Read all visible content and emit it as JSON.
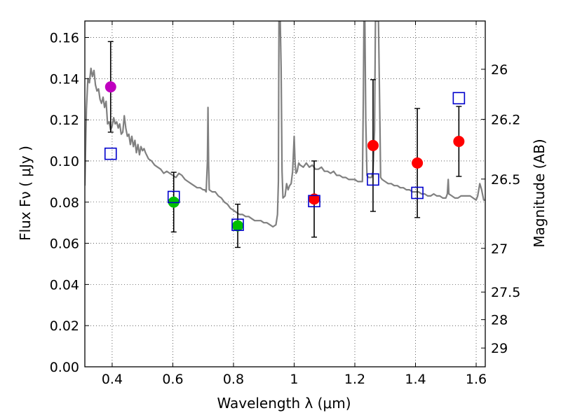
{
  "chart_data": {
    "type": "scatter",
    "title": "",
    "xlabel": "Wavelength  λ (μm)",
    "ylabel": "Flux  Fν  ( μJy )",
    "y2label": "Magnitude (AB)",
    "xlim": [
      0.31,
      1.63
    ],
    "ylim": [
      0.0,
      0.168
    ],
    "grid": true,
    "x_ticks": [
      {
        "value": 0.4,
        "label": "0.4"
      },
      {
        "value": 0.6,
        "label": "0.6"
      },
      {
        "value": 0.8,
        "label": "0.8"
      },
      {
        "value": 1.0,
        "label": "1"
      },
      {
        "value": 1.2,
        "label": "1.2"
      },
      {
        "value": 1.4,
        "label": "1.4"
      },
      {
        "value": 1.6,
        "label": "1.6"
      }
    ],
    "y_ticks": [
      {
        "value": 0.0,
        "label": "0.00"
      },
      {
        "value": 0.02,
        "label": "0.02"
      },
      {
        "value": 0.04,
        "label": "0.04"
      },
      {
        "value": 0.06,
        "label": "0.06"
      },
      {
        "value": 0.08,
        "label": "0.08"
      },
      {
        "value": 0.1,
        "label": "0.10"
      },
      {
        "value": 0.12,
        "label": "0.12"
      },
      {
        "value": 0.14,
        "label": "0.14"
      },
      {
        "value": 0.16,
        "label": "0.16"
      }
    ],
    "y2_ticks": [
      {
        "mag": 26,
        "label": "26"
      },
      {
        "mag": 26.2,
        "label": "26.2"
      },
      {
        "mag": 26.5,
        "label": "26.5"
      },
      {
        "mag": 27,
        "label": "27"
      },
      {
        "mag": 27.5,
        "label": "27.5"
      },
      {
        "mag": 28,
        "label": "28"
      },
      {
        "mag": 29,
        "label": "29"
      }
    ],
    "observed": [
      {
        "x": 0.395,
        "y": 0.136,
        "err": 0.022,
        "color": "#bf00bf"
      },
      {
        "x": 0.603,
        "y": 0.08,
        "err": 0.0145,
        "color": "#00bf00"
      },
      {
        "x": 0.814,
        "y": 0.0685,
        "err": 0.0105,
        "color": "#00bf00"
      },
      {
        "x": 1.066,
        "y": 0.0815,
        "err": 0.0185,
        "color": "#ff0000"
      },
      {
        "x": 1.26,
        "y": 0.1075,
        "err": 0.032,
        "color": "#ff0000"
      },
      {
        "x": 1.406,
        "y": 0.099,
        "err": 0.0265,
        "color": "#ff0000"
      },
      {
        "x": 1.543,
        "y": 0.1095,
        "err": 0.017,
        "color": "#ff0000"
      }
    ],
    "model_points": [
      {
        "x": 0.395,
        "y": 0.1035
      },
      {
        "x": 0.603,
        "y": 0.0825
      },
      {
        "x": 0.814,
        "y": 0.069
      },
      {
        "x": 1.066,
        "y": 0.0805
      },
      {
        "x": 1.26,
        "y": 0.091
      },
      {
        "x": 1.406,
        "y": 0.0845
      },
      {
        "x": 1.543,
        "y": 0.1305
      }
    ],
    "model_spectrum": [
      [
        0.31,
        0.088
      ],
      [
        0.315,
        0.125
      ],
      [
        0.32,
        0.14
      ],
      [
        0.325,
        0.138
      ],
      [
        0.33,
        0.145
      ],
      [
        0.335,
        0.141
      ],
      [
        0.34,
        0.144
      ],
      [
        0.345,
        0.137
      ],
      [
        0.35,
        0.134
      ],
      [
        0.355,
        0.135
      ],
      [
        0.36,
        0.13
      ],
      [
        0.365,
        0.128
      ],
      [
        0.37,
        0.131
      ],
      [
        0.375,
        0.126
      ],
      [
        0.38,
        0.129
      ],
      [
        0.385,
        0.118
      ],
      [
        0.39,
        0.119
      ],
      [
        0.395,
        0.115
      ],
      [
        0.4,
        0.117
      ],
      [
        0.405,
        0.121
      ],
      [
        0.41,
        0.118
      ],
      [
        0.415,
        0.119
      ],
      [
        0.42,
        0.116
      ],
      [
        0.425,
        0.118
      ],
      [
        0.43,
        0.113
      ],
      [
        0.435,
        0.114
      ],
      [
        0.44,
        0.122
      ],
      [
        0.445,
        0.116
      ],
      [
        0.45,
        0.112
      ],
      [
        0.455,
        0.113
      ],
      [
        0.46,
        0.108
      ],
      [
        0.465,
        0.112
      ],
      [
        0.47,
        0.107
      ],
      [
        0.475,
        0.11
      ],
      [
        0.48,
        0.104
      ],
      [
        0.485,
        0.108
      ],
      [
        0.49,
        0.103
      ],
      [
        0.495,
        0.107
      ],
      [
        0.5,
        0.105
      ],
      [
        0.505,
        0.106
      ],
      [
        0.51,
        0.104
      ],
      [
        0.52,
        0.101
      ],
      [
        0.53,
        0.1
      ],
      [
        0.54,
        0.098
      ],
      [
        0.55,
        0.097
      ],
      [
        0.56,
        0.096
      ],
      [
        0.57,
        0.094
      ],
      [
        0.58,
        0.095
      ],
      [
        0.59,
        0.094
      ],
      [
        0.6,
        0.093
      ],
      [
        0.61,
        0.092
      ],
      [
        0.62,
        0.094
      ],
      [
        0.63,
        0.093
      ],
      [
        0.64,
        0.091
      ],
      [
        0.65,
        0.09
      ],
      [
        0.66,
        0.089
      ],
      [
        0.67,
        0.088
      ],
      [
        0.68,
        0.087
      ],
      [
        0.69,
        0.087
      ],
      [
        0.7,
        0.086
      ],
      [
        0.705,
        0.086
      ],
      [
        0.71,
        0.085
      ],
      [
        0.714,
        0.1
      ],
      [
        0.716,
        0.126
      ],
      [
        0.718,
        0.098
      ],
      [
        0.72,
        0.086
      ],
      [
        0.73,
        0.085
      ],
      [
        0.74,
        0.085
      ],
      [
        0.75,
        0.083
      ],
      [
        0.76,
        0.082
      ],
      [
        0.77,
        0.08
      ],
      [
        0.78,
        0.079
      ],
      [
        0.79,
        0.077
      ],
      [
        0.8,
        0.076
      ],
      [
        0.81,
        0.075
      ],
      [
        0.82,
        0.074
      ],
      [
        0.83,
        0.074
      ],
      [
        0.84,
        0.073
      ],
      [
        0.85,
        0.073
      ],
      [
        0.86,
        0.072
      ],
      [
        0.87,
        0.071
      ],
      [
        0.88,
        0.071
      ],
      [
        0.89,
        0.071
      ],
      [
        0.9,
        0.07
      ],
      [
        0.91,
        0.07
      ],
      [
        0.92,
        0.069
      ],
      [
        0.93,
        0.068
      ],
      [
        0.94,
        0.069
      ],
      [
        0.945,
        0.074
      ],
      [
        0.948,
        0.09
      ],
      [
        0.95,
        0.168
      ],
      [
        0.954,
        0.168
      ],
      [
        0.957,
        0.145
      ],
      [
        0.96,
        0.095
      ],
      [
        0.963,
        0.082
      ],
      [
        0.97,
        0.083
      ],
      [
        0.975,
        0.089
      ],
      [
        0.98,
        0.086
      ],
      [
        0.985,
        0.088
      ],
      [
        0.99,
        0.089
      ],
      [
        0.995,
        0.095
      ],
      [
        1.0,
        0.112
      ],
      [
        1.003,
        0.099
      ],
      [
        1.006,
        0.094
      ],
      [
        1.01,
        0.095
      ],
      [
        1.015,
        0.099
      ],
      [
        1.02,
        0.098
      ],
      [
        1.03,
        0.097
      ],
      [
        1.04,
        0.099
      ],
      [
        1.05,
        0.097
      ],
      [
        1.06,
        0.098
      ],
      [
        1.07,
        0.096
      ],
      [
        1.08,
        0.096
      ],
      [
        1.09,
        0.097
      ],
      [
        1.1,
        0.095
      ],
      [
        1.11,
        0.095
      ],
      [
        1.12,
        0.094
      ],
      [
        1.13,
        0.095
      ],
      [
        1.14,
        0.093
      ],
      [
        1.15,
        0.093
      ],
      [
        1.16,
        0.092
      ],
      [
        1.17,
        0.092
      ],
      [
        1.18,
        0.091
      ],
      [
        1.19,
        0.091
      ],
      [
        1.2,
        0.091
      ],
      [
        1.21,
        0.09
      ],
      [
        1.22,
        0.09
      ],
      [
        1.225,
        0.09
      ],
      [
        1.228,
        0.13
      ],
      [
        1.23,
        0.168
      ],
      [
        1.233,
        0.168
      ],
      [
        1.236,
        0.12
      ],
      [
        1.24,
        0.093
      ],
      [
        1.245,
        0.092
      ],
      [
        1.25,
        0.092
      ],
      [
        1.255,
        0.092
      ],
      [
        1.26,
        0.095
      ],
      [
        1.265,
        0.115
      ],
      [
        1.268,
        0.168
      ],
      [
        1.275,
        0.168
      ],
      [
        1.278,
        0.168
      ],
      [
        1.282,
        0.125
      ],
      [
        1.285,
        0.092
      ],
      [
        1.29,
        0.091
      ],
      [
        1.3,
        0.09
      ],
      [
        1.31,
        0.089
      ],
      [
        1.32,
        0.089
      ],
      [
        1.33,
        0.088
      ],
      [
        1.34,
        0.088
      ],
      [
        1.35,
        0.087
      ],
      [
        1.36,
        0.087
      ],
      [
        1.37,
        0.086
      ],
      [
        1.38,
        0.086
      ],
      [
        1.39,
        0.085
      ],
      [
        1.4,
        0.085
      ],
      [
        1.41,
        0.085
      ],
      [
        1.42,
        0.084
      ],
      [
        1.43,
        0.084
      ],
      [
        1.44,
        0.083
      ],
      [
        1.45,
        0.083
      ],
      [
        1.46,
        0.084
      ],
      [
        1.47,
        0.083
      ],
      [
        1.48,
        0.083
      ],
      [
        1.49,
        0.082
      ],
      [
        1.5,
        0.082
      ],
      [
        1.505,
        0.084
      ],
      [
        1.508,
        0.091
      ],
      [
        1.51,
        0.084
      ],
      [
        1.52,
        0.083
      ],
      [
        1.53,
        0.082
      ],
      [
        1.54,
        0.082
      ],
      [
        1.55,
        0.083
      ],
      [
        1.56,
        0.083
      ],
      [
        1.57,
        0.083
      ],
      [
        1.58,
        0.083
      ],
      [
        1.59,
        0.082
      ],
      [
        1.6,
        0.081
      ],
      [
        1.605,
        0.083
      ],
      [
        1.612,
        0.089
      ],
      [
        1.618,
        0.086
      ],
      [
        1.625,
        0.081
      ],
      [
        1.63,
        0.081
      ]
    ],
    "colors": {
      "spectrum": "#808080",
      "model_marker": "#0000cc",
      "errorbar": "#000000",
      "grid": "#000000"
    }
  }
}
